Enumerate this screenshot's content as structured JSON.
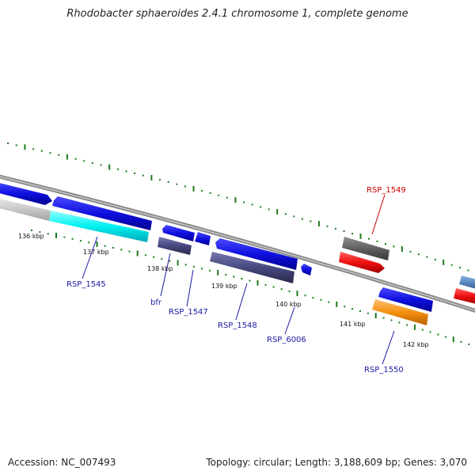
{
  "title": "Rhodobacter sphaeroides 2.4.1 chromosome 1, complete genome",
  "footer": {
    "accession": "Accession: NC_007493",
    "summary": "Topology: circular; Length: 3,188,609 bp; Genes: 3,070"
  },
  "colors": {
    "backbone": "#888888",
    "tick_dots": "#1e7a1e",
    "label_blue": "#1a1aa6",
    "label_red": "#cc0000",
    "blue_gene": "#1010e0",
    "cyan_gene": "#00f0f0",
    "slate_gene": "#484880",
    "gray_gene": "#606060",
    "red_gene": "#ee1111",
    "orange_gene": "#f59010",
    "light_gray_gene": "#c8c8c8",
    "steel_gene": "#5a8ac0"
  },
  "ticks": [
    {
      "label": "136 kbp"
    },
    {
      "label": "137 kbp"
    },
    {
      "label": "138 kbp"
    },
    {
      "label": "139 kbp"
    },
    {
      "label": "140 kbp"
    },
    {
      "label": "141 kbp"
    },
    {
      "label": "142 kbp"
    }
  ],
  "gene_labels": [
    {
      "name": "RSP_1545",
      "color": "blue"
    },
    {
      "name": "bfr",
      "color": "blue"
    },
    {
      "name": "RSP_1547",
      "color": "blue"
    },
    {
      "name": "RSP_1548",
      "color": "blue"
    },
    {
      "name": "RSP_6006",
      "color": "blue"
    },
    {
      "name": "RSP_1549",
      "color": "red"
    },
    {
      "name": "RSP_1550",
      "color": "blue"
    }
  ]
}
